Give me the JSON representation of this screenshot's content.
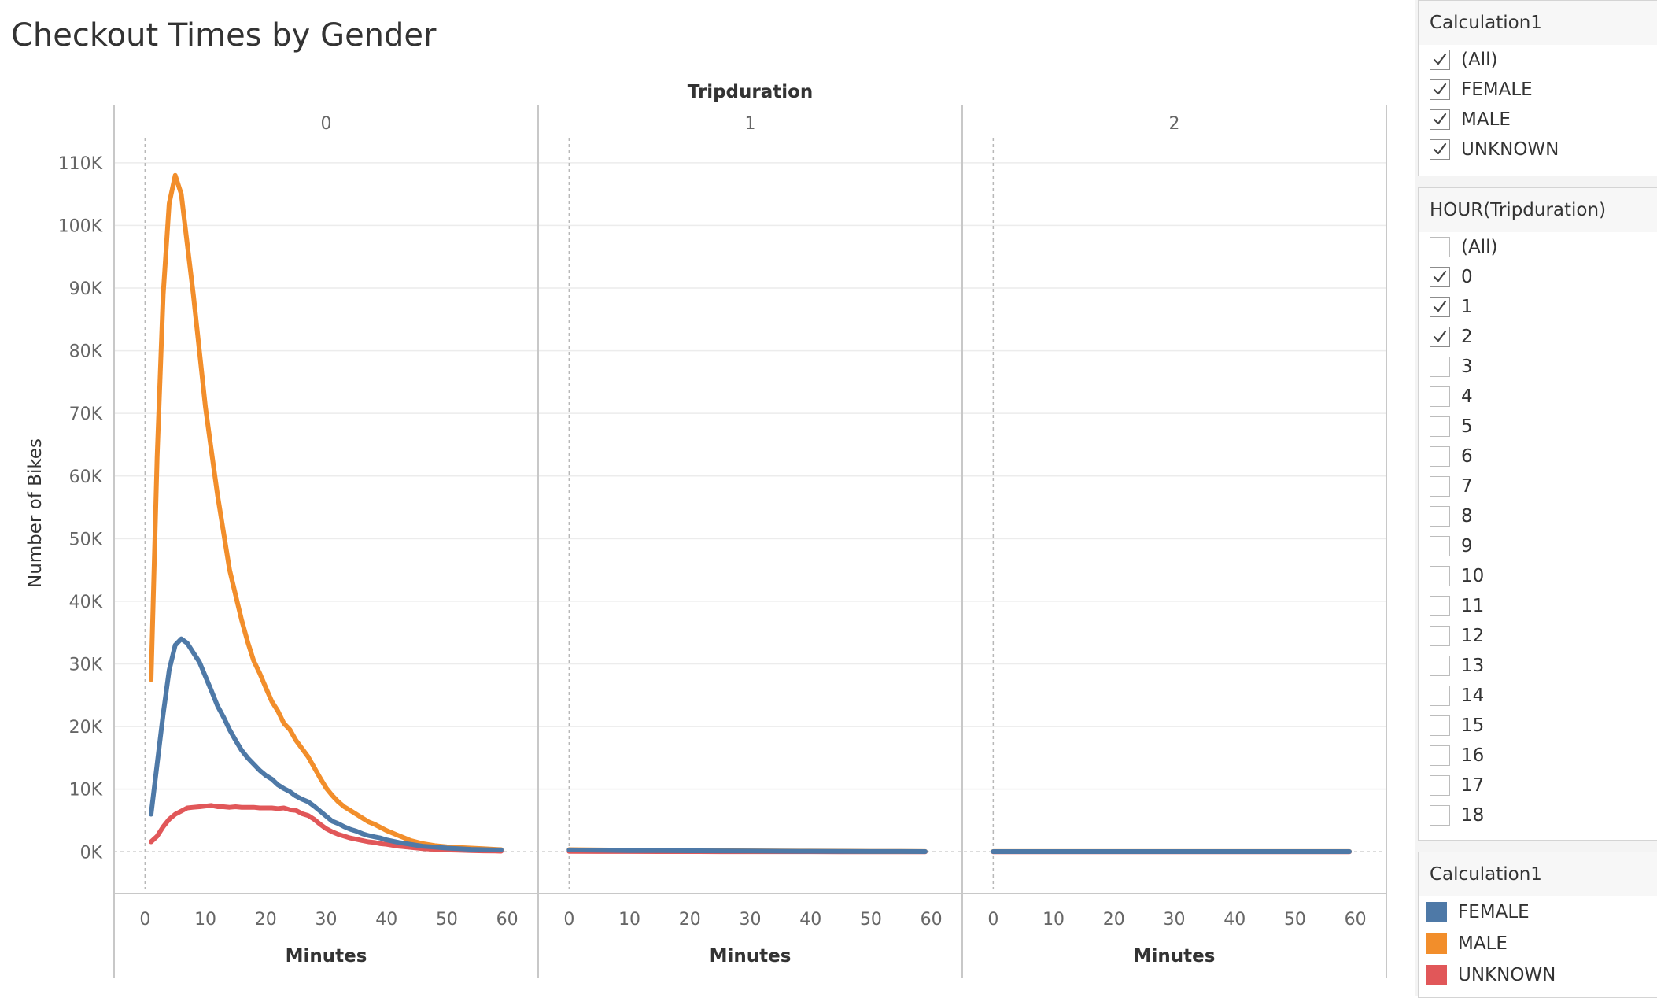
{
  "title": "Checkout Times by Gender",
  "chart_data": {
    "type": "line",
    "column_header": "Tripduration",
    "panels": [
      "0",
      "1",
      "2"
    ],
    "xlabel": "Minutes",
    "ylabel": "Number of Bikes",
    "xlim": [
      -2,
      62
    ],
    "ylim": [
      -6000,
      114000
    ],
    "x_ticks": [
      0,
      10,
      20,
      30,
      40,
      50,
      60
    ],
    "x_tick_labels": [
      "0",
      "10",
      "20",
      "30",
      "40",
      "50",
      "60"
    ],
    "y_ticks": [
      0,
      10000,
      20000,
      30000,
      40000,
      50000,
      60000,
      70000,
      80000,
      90000,
      100000,
      110000
    ],
    "y_tick_labels": [
      "0K",
      "10K",
      "20K",
      "30K",
      "40K",
      "50K",
      "60K",
      "70K",
      "80K",
      "90K",
      "100K",
      "110K"
    ],
    "grid": true,
    "series": [
      {
        "name": "FEMALE",
        "color": "#4e79a7",
        "panels": [
          {
            "x": [
              1,
              2,
              3,
              4,
              5,
              6,
              7,
              8,
              9,
              10,
              11,
              12,
              13,
              14,
              15,
              16,
              17,
              18,
              19,
              20,
              21,
              22,
              23,
              24,
              25,
              26,
              27,
              28,
              29,
              30,
              31,
              32,
              33,
              34,
              35,
              36,
              37,
              38,
              39,
              40,
              42,
              44,
              46,
              48,
              50,
              52,
              54,
              56,
              58,
              59
            ],
            "y": [
              6000,
              14000,
              22000,
              29000,
              33000,
              34000,
              33300,
              31800,
              30300,
              28000,
              25700,
              23300,
              21500,
              19500,
              17800,
              16200,
              15000,
              14000,
              13000,
              12200,
              11600,
              10700,
              10100,
              9600,
              8900,
              8400,
              8000,
              7300,
              6500,
              5700,
              4900,
              4500,
              4000,
              3600,
              3300,
              2900,
              2600,
              2400,
              2200,
              1900,
              1500,
              1200,
              900,
              750,
              600,
              500,
              400,
              350,
              300,
              300
            ]
          },
          {
            "x": [
              0,
              5,
              10,
              15,
              20,
              25,
              30,
              35,
              40,
              45,
              50,
              55,
              59
            ],
            "y": [
              300,
              250,
              200,
              180,
              160,
              140,
              120,
              100,
              80,
              60,
              50,
              40,
              30
            ]
          },
          {
            "x": [
              0,
              5,
              10,
              15,
              20,
              25,
              30,
              35,
              40,
              45,
              50,
              55,
              59
            ],
            "y": [
              30,
              30,
              30,
              30,
              30,
              30,
              30,
              30,
              30,
              30,
              30,
              30,
              30
            ]
          }
        ]
      },
      {
        "name": "MALE",
        "color": "#f28e2b",
        "panels": [
          {
            "x": [
              1,
              2,
              3,
              4,
              5,
              6,
              7,
              8,
              9,
              10,
              11,
              12,
              13,
              14,
              15,
              16,
              17,
              18,
              19,
              20,
              21,
              22,
              23,
              24,
              25,
              26,
              27,
              28,
              29,
              30,
              31,
              32,
              33,
              34,
              35,
              36,
              37,
              38,
              39,
              40,
              42,
              44,
              46,
              48,
              50,
              52,
              54,
              56,
              58,
              59
            ],
            "y": [
              27500,
              63000,
              89000,
              103500,
              108000,
              105000,
              97000,
              89000,
              80000,
              71000,
              64000,
              57000,
              51000,
              45000,
              41000,
              37000,
              33500,
              30500,
              28500,
              26200,
              24000,
              22500,
              20500,
              19500,
              17800,
              16500,
              15200,
              13500,
              11800,
              10200,
              9000,
              8000,
              7200,
              6600,
              6000,
              5400,
              4800,
              4400,
              3900,
              3400,
              2600,
              1800,
              1300,
              1000,
              800,
              700,
              600,
              500,
              400,
              350
            ]
          },
          {
            "x": [
              0,
              5,
              10,
              15,
              20,
              25,
              30,
              35,
              40,
              45,
              50,
              55,
              59
            ],
            "y": [
              350,
              300,
              260,
              230,
              200,
              170,
              150,
              130,
              110,
              90,
              70,
              55,
              40
            ]
          },
          {
            "x": [
              0,
              5,
              10,
              15,
              20,
              25,
              30,
              35,
              40,
              45,
              50,
              55,
              59
            ],
            "y": [
              40,
              40,
              40,
              40,
              40,
              40,
              40,
              40,
              40,
              40,
              40,
              40,
              40
            ]
          }
        ]
      },
      {
        "name": "UNKNOWN",
        "color": "#e15759",
        "panels": [
          {
            "x": [
              1,
              2,
              3,
              4,
              5,
              6,
              7,
              8,
              9,
              10,
              11,
              12,
              13,
              14,
              15,
              16,
              17,
              18,
              19,
              20,
              21,
              22,
              23,
              24,
              25,
              26,
              27,
              28,
              29,
              30,
              31,
              32,
              33,
              34,
              35,
              36,
              37,
              38,
              39,
              40,
              42,
              44,
              46,
              48,
              50,
              52,
              54,
              56,
              58,
              59
            ],
            "y": [
              1600,
              2500,
              4000,
              5200,
              6000,
              6500,
              7000,
              7100,
              7200,
              7300,
              7400,
              7200,
              7200,
              7100,
              7200,
              7100,
              7100,
              7100,
              7000,
              7000,
              7000,
              6900,
              7000,
              6700,
              6600,
              6100,
              5800,
              5200,
              4400,
              3700,
              3200,
              2800,
              2500,
              2200,
              2000,
              1800,
              1600,
              1500,
              1300,
              1200,
              900,
              700,
              500,
              400,
              300,
              250,
              200,
              150,
              120,
              100
            ]
          },
          {
            "x": [
              0,
              5,
              10,
              15,
              20,
              25,
              30,
              35,
              40,
              45,
              50,
              55,
              59
            ],
            "y": [
              60,
              50,
              40,
              35,
              30,
              25,
              20,
              18,
              15,
              12,
              10,
              8,
              6
            ]
          },
          {
            "x": [
              0,
              5,
              10,
              15,
              20,
              25,
              30,
              35,
              40,
              45,
              50,
              55,
              59
            ],
            "y": [
              10,
              10,
              10,
              10,
              10,
              10,
              10,
              10,
              10,
              10,
              10,
              10,
              10
            ]
          }
        ]
      }
    ]
  },
  "filters": {
    "gender": {
      "title": "Calculation1",
      "items": [
        {
          "label": "(All)",
          "checked": true
        },
        {
          "label": "FEMALE",
          "checked": true
        },
        {
          "label": "MALE",
          "checked": true
        },
        {
          "label": "UNKNOWN",
          "checked": true
        }
      ]
    },
    "hour": {
      "title": "HOUR(Tripduration)",
      "items": [
        {
          "label": "(All)",
          "checked": false
        },
        {
          "label": "0",
          "checked": true
        },
        {
          "label": "1",
          "checked": true
        },
        {
          "label": "2",
          "checked": true
        },
        {
          "label": "3",
          "checked": false
        },
        {
          "label": "4",
          "checked": false
        },
        {
          "label": "5",
          "checked": false
        },
        {
          "label": "6",
          "checked": false
        },
        {
          "label": "7",
          "checked": false
        },
        {
          "label": "8",
          "checked": false
        },
        {
          "label": "9",
          "checked": false
        },
        {
          "label": "10",
          "checked": false
        },
        {
          "label": "11",
          "checked": false
        },
        {
          "label": "12",
          "checked": false
        },
        {
          "label": "13",
          "checked": false
        },
        {
          "label": "14",
          "checked": false
        },
        {
          "label": "15",
          "checked": false
        },
        {
          "label": "16",
          "checked": false
        },
        {
          "label": "17",
          "checked": false
        },
        {
          "label": "18",
          "checked": false
        }
      ]
    }
  },
  "legend": {
    "title": "Calculation1",
    "items": [
      {
        "label": "FEMALE",
        "color": "#4e79a7"
      },
      {
        "label": "MALE",
        "color": "#f28e2b"
      },
      {
        "label": "UNKNOWN",
        "color": "#e15759"
      }
    ]
  }
}
